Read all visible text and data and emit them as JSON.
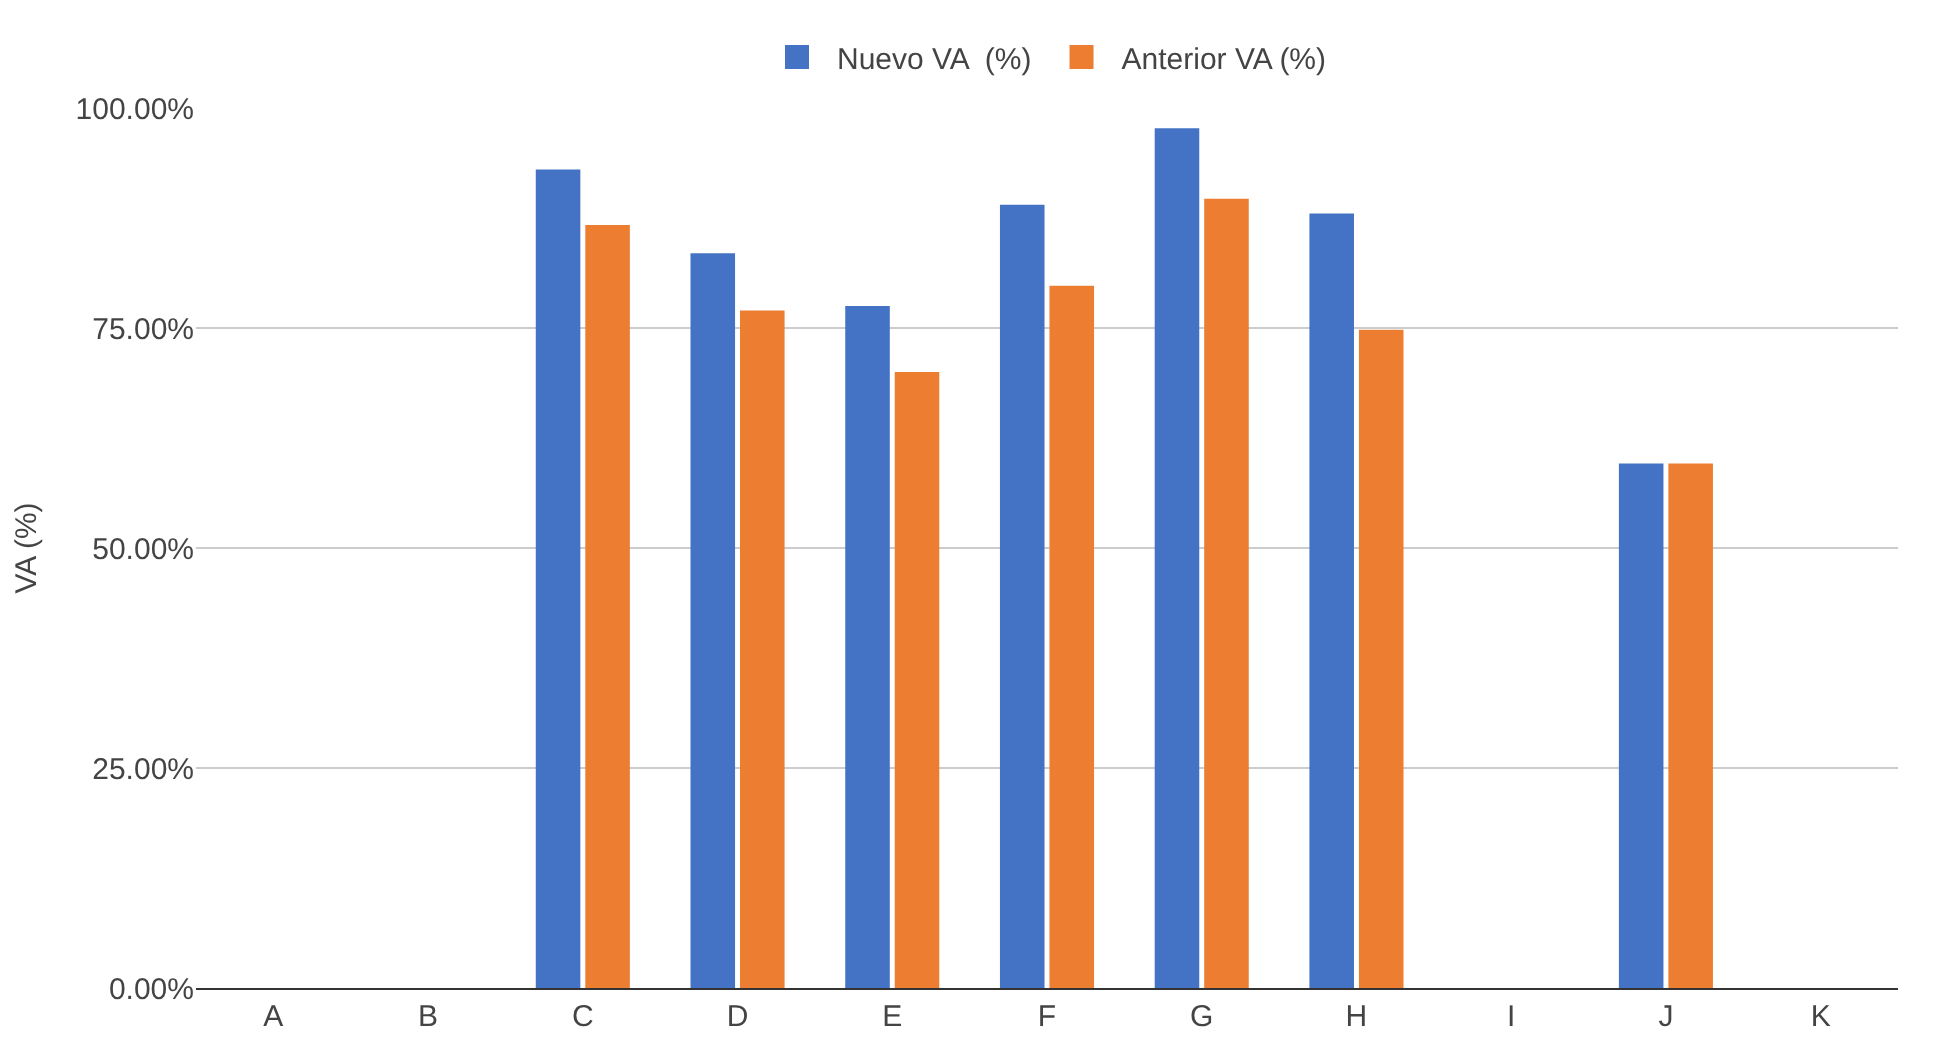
{
  "chart_data": {
    "type": "bar",
    "ylabel": "VA (%)",
    "categories": [
      "A",
      "B",
      "C",
      "D",
      "E",
      "F",
      "G",
      "H",
      "I",
      "J",
      "K"
    ],
    "series": [
      {
        "name": "Nuevo VA  (%)",
        "color": "#4472c4",
        "values": [
          null,
          null,
          93,
          83.5,
          77.5,
          89,
          97.7,
          88,
          null,
          59.6,
          null
        ]
      },
      {
        "name": "Anterior VA (%)",
        "color": "#ed7d31",
        "values": [
          null,
          null,
          86.7,
          77,
          70,
          79.8,
          89.7,
          74.8,
          null,
          59.6,
          null
        ]
      }
    ],
    "ylim": [
      0,
      100
    ],
    "yticks": [
      {
        "value": 0,
        "label": "0.00%"
      },
      {
        "value": 25,
        "label": "25.00%"
      },
      {
        "value": 50,
        "label": "50.00%"
      },
      {
        "value": 75,
        "label": "75.00%"
      },
      {
        "value": 100,
        "label": "100.00%"
      }
    ],
    "grid": "y",
    "legend": "top"
  }
}
